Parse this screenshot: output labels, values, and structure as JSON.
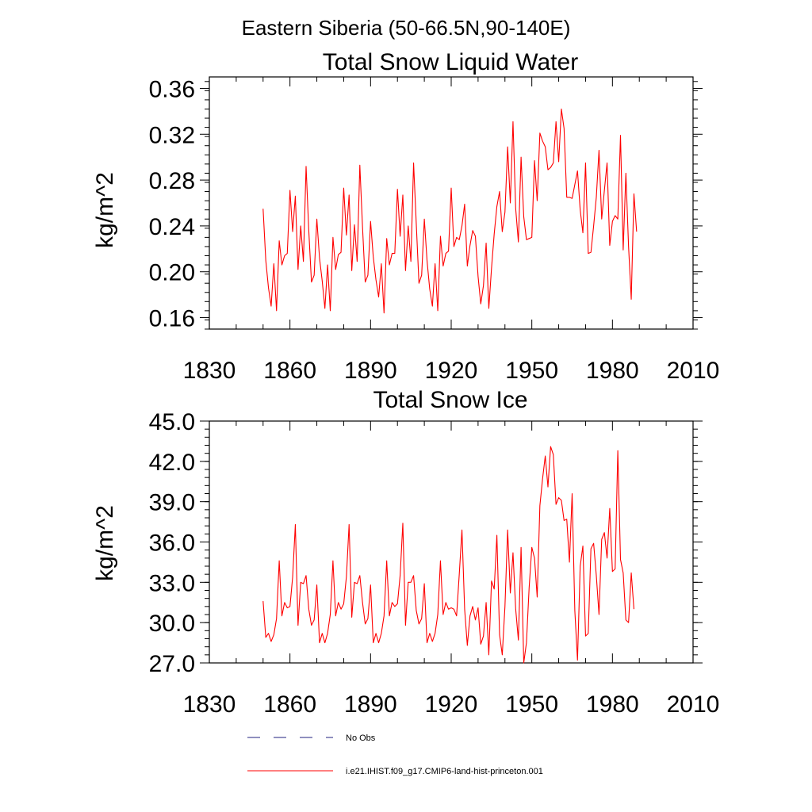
{
  "figure": {
    "suptitle": "Eastern Siberia (50-66.5N,90-140E)",
    "legend": [
      {
        "label": "No Obs",
        "color": "#4d4d99",
        "dash": "dashed"
      },
      {
        "label": "i.e21.IHIST.f09_g17.CMIP6-land-hist-princeton.001",
        "color": "#ff0000",
        "dash": "solid"
      }
    ]
  },
  "chart_data": [
    {
      "type": "line",
      "title": "Total Snow Liquid Water",
      "xlabel": "",
      "ylabel": "kg/m^2",
      "xlim": [
        1830,
        2010
      ],
      "ylim": [
        0.15,
        0.37
      ],
      "xticks": [
        1830,
        1860,
        1890,
        1920,
        1950,
        1980,
        2010
      ],
      "yticks": [
        0.16,
        0.2,
        0.24,
        0.28,
        0.32,
        0.36
      ],
      "ytick_labels": [
        "0.16",
        "0.20",
        "0.24",
        "0.28",
        "0.32",
        "0.36"
      ],
      "grid": false,
      "series": [
        {
          "color": "#ff0000",
          "x_start": 1850,
          "x_step": 1,
          "values": [
            0.255,
            0.21,
            0.186,
            0.17,
            0.207,
            0.166,
            0.227,
            0.206,
            0.214,
            0.216,
            0.271,
            0.235,
            0.266,
            0.202,
            0.24,
            0.209,
            0.292,
            0.236,
            0.191,
            0.197,
            0.246,
            0.212,
            0.192,
            0.168,
            0.206,
            0.166,
            0.23,
            0.202,
            0.215,
            0.217,
            0.273,
            0.232,
            0.267,
            0.201,
            0.241,
            0.209,
            0.293,
            0.239,
            0.191,
            0.197,
            0.244,
            0.213,
            0.193,
            0.178,
            0.207,
            0.164,
            0.229,
            0.206,
            0.216,
            0.216,
            0.272,
            0.231,
            0.267,
            0.201,
            0.24,
            0.209,
            0.295,
            0.242,
            0.19,
            0.197,
            0.246,
            0.21,
            0.185,
            0.17,
            0.207,
            0.166,
            0.231,
            0.205,
            0.216,
            0.218,
            0.273,
            0.222,
            0.23,
            0.228,
            0.24,
            0.259,
            0.205,
            0.223,
            0.236,
            0.231,
            0.196,
            0.172,
            0.188,
            0.225,
            0.168,
            0.203,
            0.233,
            0.257,
            0.27,
            0.235,
            0.252,
            0.309,
            0.26,
            0.331,
            0.255,
            0.226,
            0.3,
            0.248,
            0.228,
            0.229,
            0.23,
            0.297,
            0.262,
            0.321,
            0.314,
            0.309,
            0.289,
            0.291,
            0.295,
            0.331,
            0.296,
            0.342,
            0.325,
            0.265,
            0.265,
            0.264,
            0.276,
            0.288,
            0.254,
            0.234,
            0.295,
            0.216,
            0.217,
            0.24,
            0.265,
            0.306,
            0.246,
            0.271,
            0.295,
            0.223,
            0.244,
            0.249,
            0.246,
            0.319,
            0.219,
            0.286,
            0.222,
            0.176,
            0.268,
            0.235
          ]
        }
      ]
    },
    {
      "type": "line",
      "title": "Total Snow Ice",
      "xlabel": "",
      "ylabel": "kg/m^2",
      "xlim": [
        1830,
        2010
      ],
      "ylim": [
        27.0,
        45.0
      ],
      "xticks": [
        1830,
        1860,
        1890,
        1920,
        1950,
        1980,
        2010
      ],
      "yticks": [
        27.0,
        30.0,
        33.0,
        36.0,
        39.0,
        42.0,
        45.0
      ],
      "ytick_labels": [
        "27.0",
        "30.0",
        "33.0",
        "36.0",
        "39.0",
        "42.0",
        "45.0"
      ],
      "grid": false,
      "series": [
        {
          "color": "#ff0000",
          "x_start": 1850,
          "x_step": 1,
          "values": [
            31.6,
            28.9,
            29.2,
            28.6,
            29.1,
            30.3,
            34.6,
            30.5,
            31.5,
            31.1,
            31.2,
            33.4,
            37.3,
            29.8,
            33.0,
            32.9,
            33.5,
            31.0,
            29.8,
            30.2,
            32.8,
            28.5,
            29.2,
            28.5,
            29.2,
            30.6,
            34.6,
            30.5,
            31.5,
            31.0,
            31.4,
            33.4,
            37.3,
            30.4,
            33.0,
            32.9,
            33.5,
            31.5,
            29.9,
            30.3,
            32.8,
            28.5,
            29.2,
            28.5,
            29.2,
            30.5,
            34.6,
            30.5,
            31.5,
            31.2,
            31.4,
            33.5,
            37.4,
            29.8,
            33.0,
            33.0,
            33.5,
            30.9,
            29.9,
            30.3,
            32.9,
            28.5,
            29.2,
            28.6,
            29.2,
            30.6,
            34.6,
            30.6,
            31.5,
            31.0,
            31.1,
            31.0,
            30.5,
            33.6,
            36.9,
            31.0,
            28.3,
            30.5,
            31.2,
            30.2,
            31.1,
            28.4,
            29.0,
            31.5,
            27.6,
            33.1,
            32.5,
            36.5,
            29.1,
            27.6,
            31.2,
            36.9,
            32.2,
            35.2,
            31.0,
            28.7,
            35.6,
            27.0,
            28.5,
            32.6,
            35.6,
            34.8,
            31.9,
            38.7,
            40.7,
            42.4,
            40.1,
            43.1,
            42.5,
            38.8,
            39.3,
            39.1,
            37.6,
            37.7,
            34.5,
            39.6,
            30.9,
            27.2,
            34.2,
            35.7,
            29.0,
            29.2,
            35.5,
            35.9,
            33.5,
            30.6,
            36.2,
            36.7,
            34.8,
            38.5,
            33.8,
            34.0,
            42.8,
            34.7,
            33.7,
            30.2,
            30.0,
            33.7,
            31.0
          ]
        }
      ]
    }
  ]
}
